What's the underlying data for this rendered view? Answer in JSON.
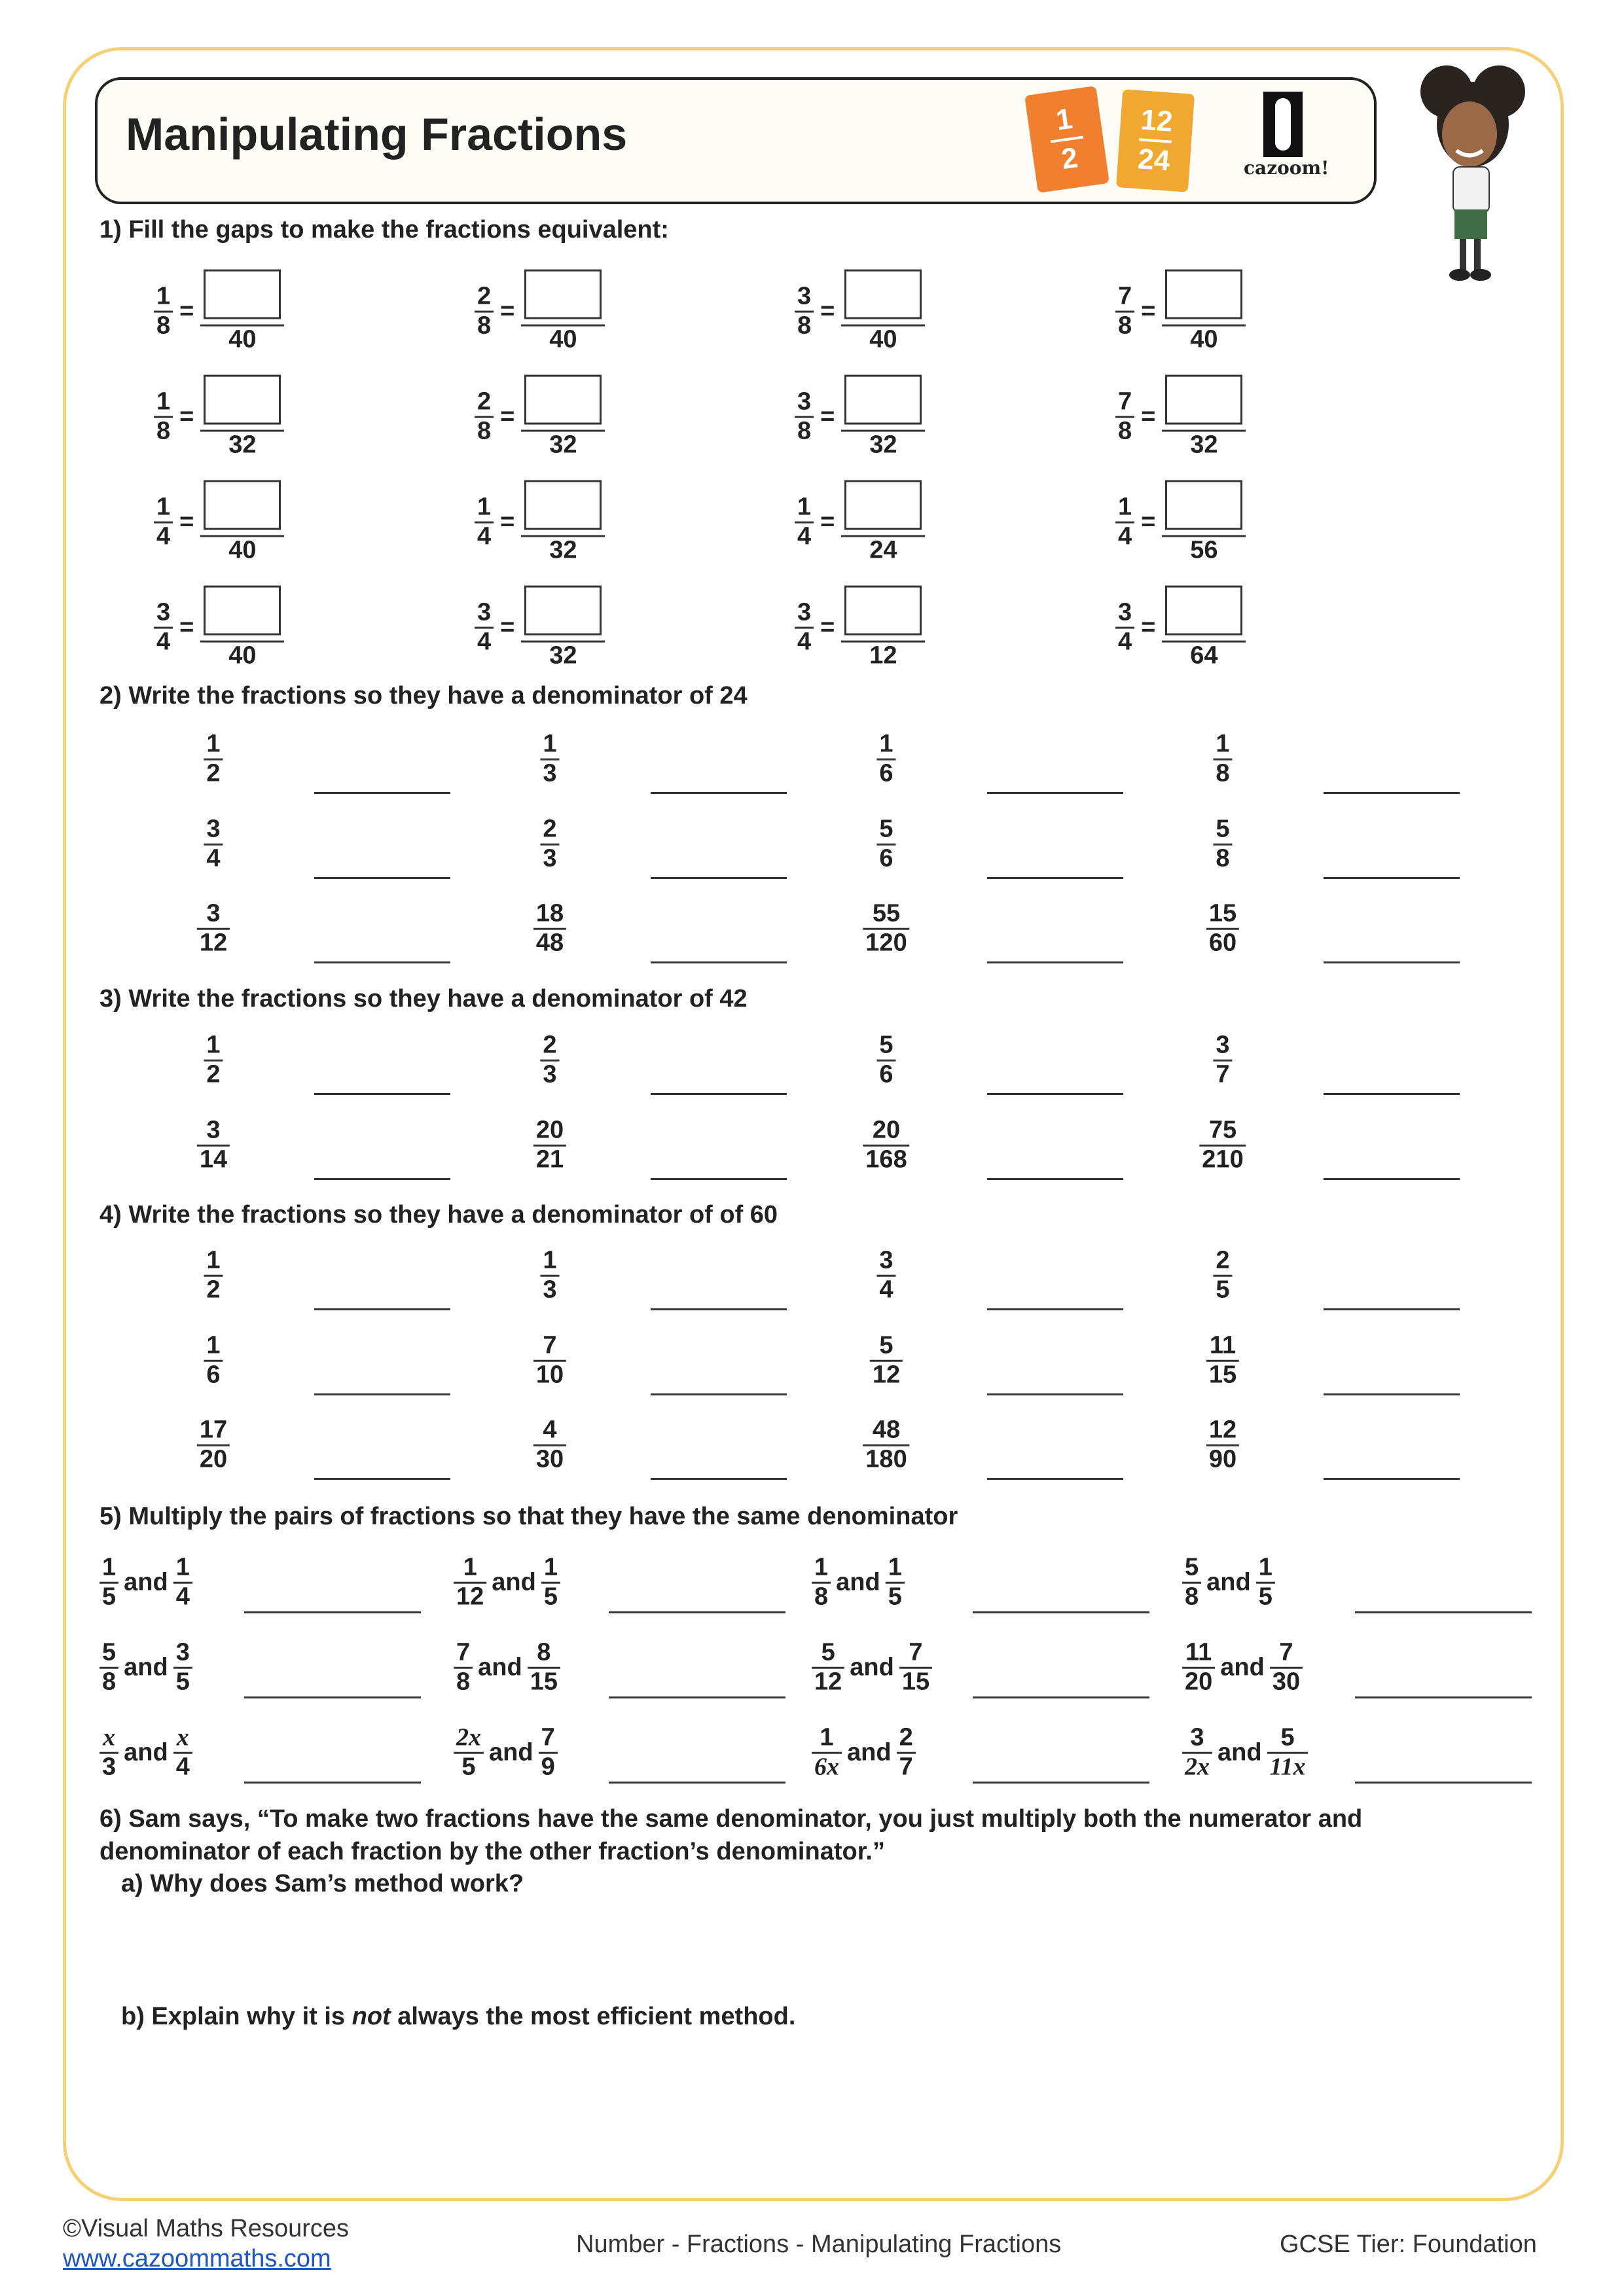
{
  "header": {
    "title": "Manipulating Fractions",
    "book_left": {
      "num": "1",
      "den": "2"
    },
    "book_right": {
      "num": "12",
      "den": "24"
    },
    "logo_text": "cazoom!",
    "colors": {
      "border": "#f7cf74",
      "book_left": "#f08030",
      "book_right": "#f0a830"
    }
  },
  "q1": {
    "heading": "1) Fill the gaps to make the fractions equivalent:",
    "eq": "=",
    "rows": [
      [
        {
          "n": "1",
          "d": "8",
          "t": "40"
        },
        {
          "n": "2",
          "d": "8",
          "t": "40"
        },
        {
          "n": "3",
          "d": "8",
          "t": "40"
        },
        {
          "n": "7",
          "d": "8",
          "t": "40"
        }
      ],
      [
        {
          "n": "1",
          "d": "8",
          "t": "32"
        },
        {
          "n": "2",
          "d": "8",
          "t": "32"
        },
        {
          "n": "3",
          "d": "8",
          "t": "32"
        },
        {
          "n": "7",
          "d": "8",
          "t": "32"
        }
      ],
      [
        {
          "n": "1",
          "d": "4",
          "t": "40"
        },
        {
          "n": "1",
          "d": "4",
          "t": "32"
        },
        {
          "n": "1",
          "d": "4",
          "t": "24"
        },
        {
          "n": "1",
          "d": "4",
          "t": "56"
        }
      ],
      [
        {
          "n": "3",
          "d": "4",
          "t": "40"
        },
        {
          "n": "3",
          "d": "4",
          "t": "32"
        },
        {
          "n": "3",
          "d": "4",
          "t": "12"
        },
        {
          "n": "3",
          "d": "4",
          "t": "64"
        }
      ]
    ]
  },
  "q2": {
    "heading": "2) Write the fractions so they have a denominator of 24",
    "rows": [
      [
        {
          "n": "1",
          "d": "2"
        },
        {
          "n": "1",
          "d": "3"
        },
        {
          "n": "1",
          "d": "6"
        },
        {
          "n": "1",
          "d": "8"
        }
      ],
      [
        {
          "n": "3",
          "d": "4"
        },
        {
          "n": "2",
          "d": "3"
        },
        {
          "n": "5",
          "d": "6"
        },
        {
          "n": "5",
          "d": "8"
        }
      ],
      [
        {
          "n": "3",
          "d": "12"
        },
        {
          "n": "18",
          "d": "48"
        },
        {
          "n": "55",
          "d": "120"
        },
        {
          "n": "15",
          "d": "60"
        }
      ]
    ]
  },
  "q3": {
    "heading": "3) Write the fractions so they have a denominator of 42",
    "rows": [
      [
        {
          "n": "1",
          "d": "2"
        },
        {
          "n": "2",
          "d": "3"
        },
        {
          "n": "5",
          "d": "6"
        },
        {
          "n": "3",
          "d": "7"
        }
      ],
      [
        {
          "n": "3",
          "d": "14"
        },
        {
          "n": "20",
          "d": "21"
        },
        {
          "n": "20",
          "d": "168"
        },
        {
          "n": "75",
          "d": "210"
        }
      ]
    ]
  },
  "q4": {
    "heading": "4) Write the fractions so they have a denominator of of 60",
    "rows": [
      [
        {
          "n": "1",
          "d": "2"
        },
        {
          "n": "1",
          "d": "3"
        },
        {
          "n": "3",
          "d": "4"
        },
        {
          "n": "2",
          "d": "5"
        }
      ],
      [
        {
          "n": "1",
          "d": "6"
        },
        {
          "n": "7",
          "d": "10"
        },
        {
          "n": "5",
          "d": "12"
        },
        {
          "n": "11",
          "d": "15"
        }
      ],
      [
        {
          "n": "17",
          "d": "20"
        },
        {
          "n": "4",
          "d": "30"
        },
        {
          "n": "48",
          "d": "180"
        },
        {
          "n": "12",
          "d": "90"
        }
      ]
    ]
  },
  "q5": {
    "heading": "5) Multiply the pairs of fractions so that they have the same denominator",
    "and": "and",
    "rows": [
      [
        {
          "a": {
            "n": "1",
            "d": "5"
          },
          "b": {
            "n": "1",
            "d": "4"
          }
        },
        {
          "a": {
            "n": "1",
            "d": "12"
          },
          "b": {
            "n": "1",
            "d": "5"
          }
        },
        {
          "a": {
            "n": "1",
            "d": "8"
          },
          "b": {
            "n": "1",
            "d": "5"
          }
        },
        {
          "a": {
            "n": "5",
            "d": "8"
          },
          "b": {
            "n": "1",
            "d": "5"
          }
        }
      ],
      [
        {
          "a": {
            "n": "5",
            "d": "8"
          },
          "b": {
            "n": "3",
            "d": "5"
          }
        },
        {
          "a": {
            "n": "7",
            "d": "8"
          },
          "b": {
            "n": "8",
            "d": "15"
          }
        },
        {
          "a": {
            "n": "5",
            "d": "12"
          },
          "b": {
            "n": "7",
            "d": "15"
          }
        },
        {
          "a": {
            "n": "11",
            "d": "20"
          },
          "b": {
            "n": "7",
            "d": "30"
          }
        }
      ],
      [
        {
          "a": {
            "n": "x",
            "d": "3"
          },
          "b": {
            "n": "x",
            "d": "4"
          }
        },
        {
          "a": {
            "n": "2x",
            "d": "5"
          },
          "b": {
            "n": "7",
            "d": "9"
          }
        },
        {
          "a": {
            "n": "1",
            "d": "6x"
          },
          "b": {
            "n": "2",
            "d": "7"
          }
        },
        {
          "a": {
            "n": "3",
            "d": "2x"
          },
          "b": {
            "n": "5",
            "d": "11x"
          }
        }
      ]
    ]
  },
  "q6": {
    "line1": "6) Sam says, “To make two fractions have the same denominator, you just multiply both the numerator and",
    "line2": "denominator of each fraction by the other fraction’s denominator.”",
    "a": "a) Why does Sam’s method work?",
    "b_pre": "b) Explain why it is ",
    "b_em": "not",
    "b_post": " always the most efficient method."
  },
  "footer": {
    "copyright": "©Visual Maths Resources",
    "url": "www.cazoommaths.com",
    "topic": "Number - Fractions - Manipulating Fractions",
    "tier": "GCSE Tier: Foundation",
    "link_color": "#1a55c0"
  }
}
